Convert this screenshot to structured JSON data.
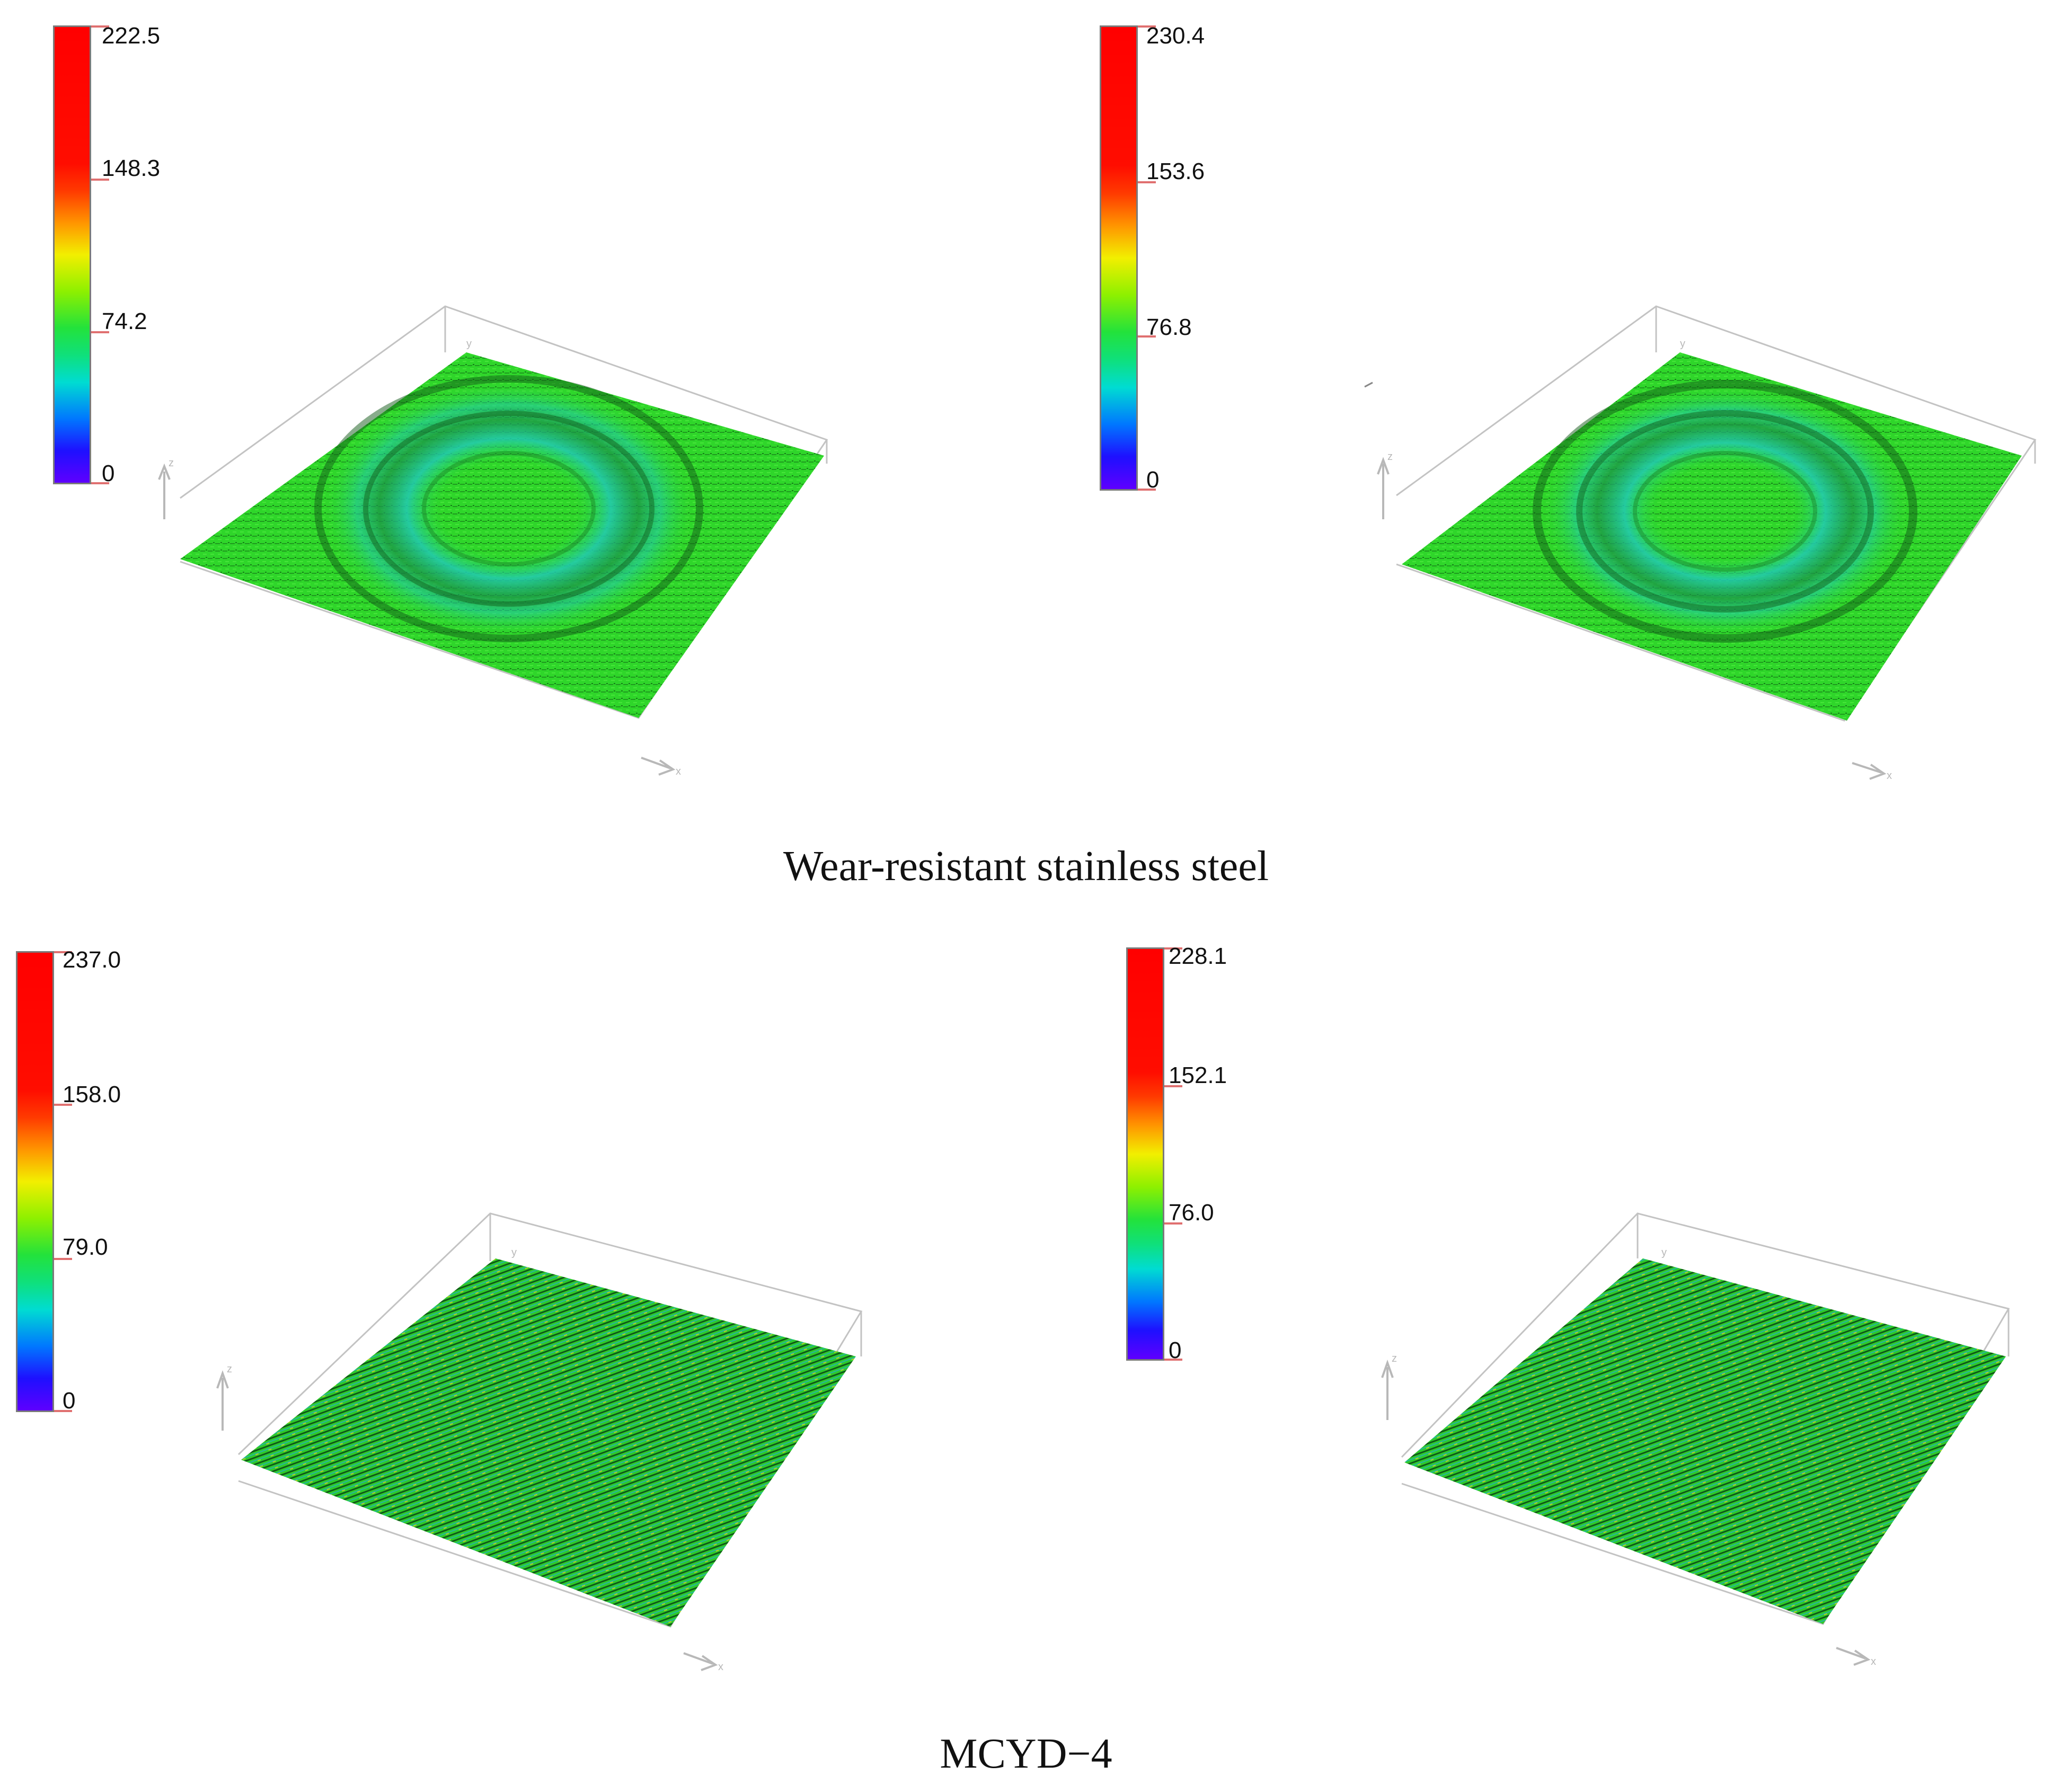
{
  "figure": {
    "panels": [
      {
        "id": "a",
        "colorbar": {
          "max": "222.5",
          "upper": "148.3",
          "mid": "74.2",
          "min": "0"
        },
        "surface": "ring-wear"
      },
      {
        "id": "b",
        "colorbar": {
          "max": "230.4",
          "upper": "153.6",
          "mid": "76.8",
          "min": "0"
        },
        "surface": "ring-wear"
      },
      {
        "id": "c",
        "colorbar": {
          "max": "237.0",
          "upper": "158.0",
          "mid": "79.0",
          "min": "0"
        },
        "surface": "striated"
      },
      {
        "id": "d",
        "colorbar": {
          "max": "228.1",
          "upper": "152.1",
          "mid": "76.0",
          "min": "0"
        },
        "surface": "striated"
      }
    ],
    "captions": {
      "top": "Wear-resistant stainless steel",
      "bottom": "MCYD−4"
    },
    "axis_labels": {
      "x": "x",
      "y": "y",
      "z": "z"
    },
    "colors": {
      "surface_green": "#2fd62a",
      "wear_cyan": "#22c9b4",
      "shadow": "#0f5a16",
      "axis_gray": "#b8b8b8"
    }
  }
}
